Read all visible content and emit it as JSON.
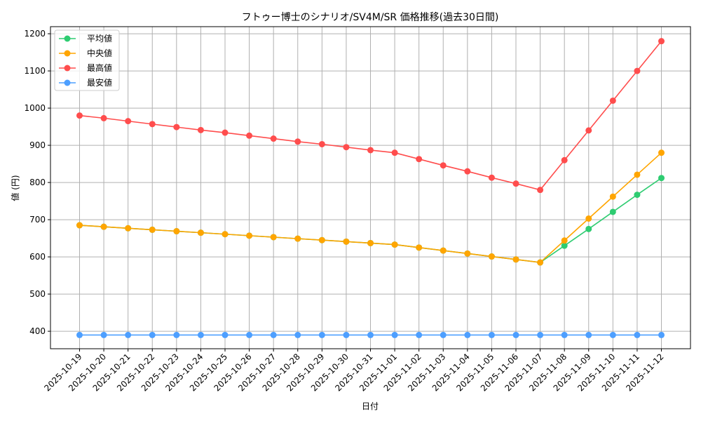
{
  "chart_data": {
    "type": "line",
    "title": "フトゥー博士のシナリオ/SV4M/SR 価格推移(過去30日間)",
    "xlabel": "日付",
    "ylabel": "値 (円)",
    "ylim": [
      353,
      1219
    ],
    "yticks": [
      400,
      500,
      600,
      700,
      800,
      900,
      1000,
      1100,
      1200
    ],
    "grid": true,
    "legend": "top-left",
    "x": [
      "2025-10-19",
      "2025-10-20",
      "2025-10-21",
      "2025-10-22",
      "2025-10-23",
      "2025-10-24",
      "2025-10-25",
      "2025-10-26",
      "2025-10-27",
      "2025-10-28",
      "2025-10-29",
      "2025-10-30",
      "2025-10-31",
      "2025-11-01",
      "2025-11-02",
      "2025-11-03",
      "2025-11-04",
      "2025-11-05",
      "2025-11-06",
      "2025-11-07",
      "2025-11-08",
      "2025-11-09",
      "2025-11-10",
      "2025-11-11",
      "2025-11-12"
    ],
    "series": [
      {
        "name": "平均値",
        "color": "#2ecc71",
        "values": [
          685,
          681,
          677,
          673,
          669,
          665,
          661,
          657,
          653,
          649,
          645,
          641,
          637,
          633,
          625,
          617,
          609,
          601,
          593,
          585,
          630,
          675,
          721,
          767,
          812
        ]
      },
      {
        "name": "中央値",
        "color": "#ffa500",
        "values": [
          685,
          681,
          677,
          673,
          669,
          665,
          661,
          657,
          653,
          649,
          645,
          641,
          637,
          633,
          625,
          617,
          609,
          601,
          593,
          585,
          644,
          703,
          762,
          821,
          880
        ]
      },
      {
        "name": "最高値",
        "color": "#ff4d4d",
        "values": [
          980,
          973,
          965,
          957,
          949,
          941,
          934,
          926,
          918,
          910,
          903,
          895,
          887,
          880,
          863,
          846,
          830,
          813,
          797,
          780,
          860,
          940,
          1020,
          1100,
          1180
        ]
      },
      {
        "name": "最安値",
        "color": "#4d9fff",
        "values": [
          390,
          390,
          390,
          390,
          390,
          390,
          390,
          390,
          390,
          390,
          390,
          390,
          390,
          390,
          390,
          390,
          390,
          390,
          390,
          390,
          390,
          390,
          390,
          390,
          390
        ]
      }
    ]
  }
}
